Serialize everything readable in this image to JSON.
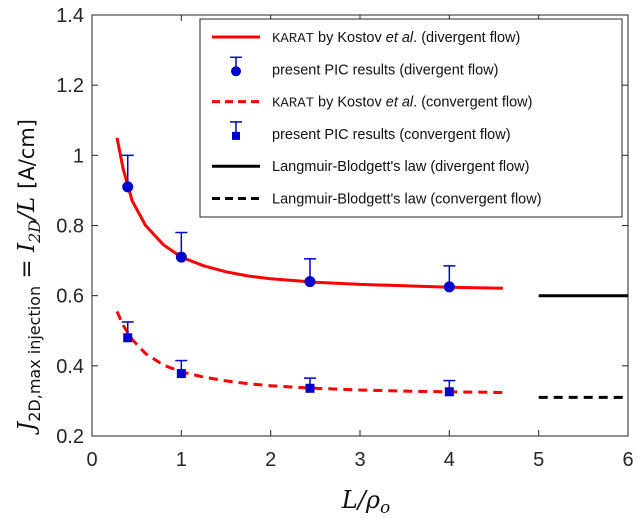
{
  "chart_data": {
    "type": "line",
    "title": "",
    "xlabel": "L/ρo",
    "ylabel": {
      "prefix": "J",
      "sub": "2D,max injection",
      "equals": " = ",
      "num": "I",
      "num_sub": "2D",
      "slash": "/L",
      "unit": "[A/cm]"
    },
    "xlim": [
      0,
      6
    ],
    "ylim": [
      0.2,
      1.4
    ],
    "xticks": [
      "0",
      "1",
      "2",
      "3",
      "4",
      "5",
      "6"
    ],
    "yticks": [
      "0.2",
      "0.4",
      "0.6",
      "0.8",
      "1",
      "1.2",
      "1.4"
    ],
    "grid": false,
    "legend_position": "top-right",
    "series": [
      {
        "name": "KARAT by Kostov et al. (divergent flow)",
        "style": "solid",
        "color": "#ff0000",
        "x": [
          0.28,
          0.35,
          0.45,
          0.6,
          0.8,
          1.0,
          1.25,
          1.5,
          1.75,
          2.0,
          2.5,
          3.0,
          3.5,
          4.0,
          4.6
        ],
        "y": [
          1.05,
          0.96,
          0.87,
          0.8,
          0.745,
          0.71,
          0.685,
          0.668,
          0.656,
          0.648,
          0.638,
          0.632,
          0.628,
          0.624,
          0.621
        ]
      },
      {
        "name": "present PIC results (divergent flow)",
        "style": "markers-errorbar",
        "marker": "circle",
        "color": "#0000cc",
        "x": [
          0.4,
          1.0,
          2.44,
          4.0
        ],
        "y": [
          0.91,
          0.71,
          0.64,
          0.625
        ],
        "err_up": [
          1.0,
          0.78,
          0.705,
          0.685
        ]
      },
      {
        "name": "KARAT by Kostov et al. (convergent flow)",
        "style": "dashed",
        "color": "#ff0000",
        "x": [
          0.28,
          0.35,
          0.45,
          0.6,
          0.8,
          1.0,
          1.25,
          1.5,
          1.75,
          2.0,
          2.5,
          3.0,
          3.5,
          4.0,
          4.6
        ],
        "y": [
          0.555,
          0.515,
          0.475,
          0.435,
          0.402,
          0.383,
          0.368,
          0.357,
          0.349,
          0.343,
          0.336,
          0.331,
          0.328,
          0.326,
          0.324
        ]
      },
      {
        "name": "present PIC results (convergent flow)",
        "style": "markers-errorbar",
        "marker": "square",
        "color": "#0000cc",
        "x": [
          0.4,
          1.0,
          2.44,
          4.0
        ],
        "y": [
          0.48,
          0.378,
          0.336,
          0.326
        ],
        "err_up": [
          0.525,
          0.415,
          0.365,
          0.358
        ]
      },
      {
        "name": "Langmuir-Blodgett's law (divergent flow)",
        "style": "solid",
        "color": "#000000",
        "x": [
          5.0,
          6.0
        ],
        "y": [
          0.6,
          0.6
        ]
      },
      {
        "name": "Langmuir-Blodgett's law (convergent flow)",
        "style": "dashed",
        "color": "#000000",
        "x": [
          5.0,
          6.0
        ],
        "y": [
          0.31,
          0.31
        ]
      }
    ],
    "legend": [
      {
        "mono": "KARAT",
        "pre": " by Kostov ",
        "ital": "et al",
        "post": ". (divergent flow)"
      },
      {
        "mono": "",
        "pre": "present PIC results (divergent flow)",
        "ital": "",
        "post": ""
      },
      {
        "mono": "KARAT",
        "pre": " by Kostov ",
        "ital": "et al",
        "post": ". (convergent flow)"
      },
      {
        "mono": "",
        "pre": "present PIC results (convergent flow)",
        "ital": "",
        "post": ""
      },
      {
        "mono": "",
        "pre": "Langmuir-Blodgett's law (divergent flow)",
        "ital": "",
        "post": ""
      },
      {
        "mono": "",
        "pre": "Langmuir-Blodgett's law (convergent flow)",
        "ital": "",
        "post": ""
      }
    ]
  }
}
